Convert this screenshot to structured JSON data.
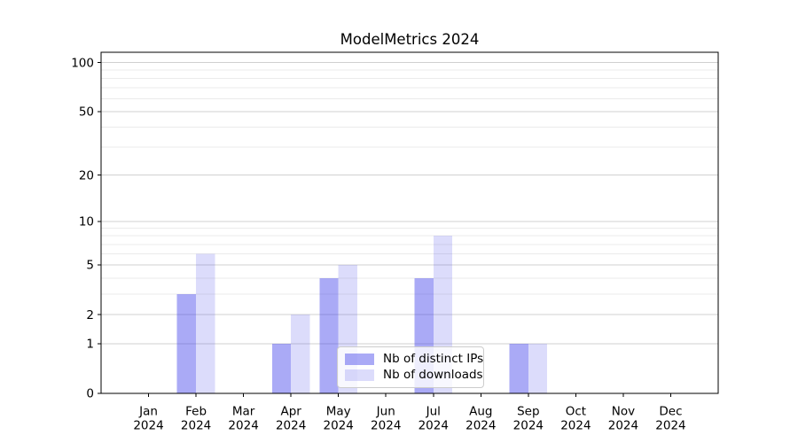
{
  "chart_data": {
    "type": "bar",
    "title": "ModelMetrics 2024",
    "categories": [
      "Jan",
      "Feb",
      "Mar",
      "Apr",
      "May",
      "Jun",
      "Jul",
      "Aug",
      "Sep",
      "Oct",
      "Nov",
      "Dec"
    ],
    "x_year_label": "2024",
    "series": [
      {
        "name": "Nb of distinct IPs",
        "color": "rgba(69,69,235,0.46)",
        "values": [
          0,
          3,
          0,
          1,
          4,
          0,
          4,
          0,
          1,
          0,
          0,
          0
        ]
      },
      {
        "name": "Nb of downloads",
        "color": "rgba(69,69,235,0.19)",
        "values": [
          0,
          6,
          0,
          2,
          5,
          0,
          8,
          0,
          1,
          0,
          0,
          0
        ]
      }
    ],
    "xlabel": "",
    "ylabel": "",
    "yaxis": {
      "scale": "log1p",
      "ticks": [
        0,
        1,
        2,
        5,
        10,
        20,
        50,
        100
      ],
      "minor_ticks": [
        3,
        4,
        6,
        7,
        8,
        9,
        30,
        40,
        60,
        70,
        80,
        90
      ],
      "ylim": [
        0,
        115.6
      ]
    },
    "grid": {
      "enabled": true,
      "which": "both",
      "major_color": "#d0d0d0",
      "minor_color": "#ebebeb"
    },
    "legend": {
      "position": "lower center"
    },
    "colors": {
      "spine": "#000000",
      "text": "#000000",
      "background": "#ffffff"
    }
  }
}
